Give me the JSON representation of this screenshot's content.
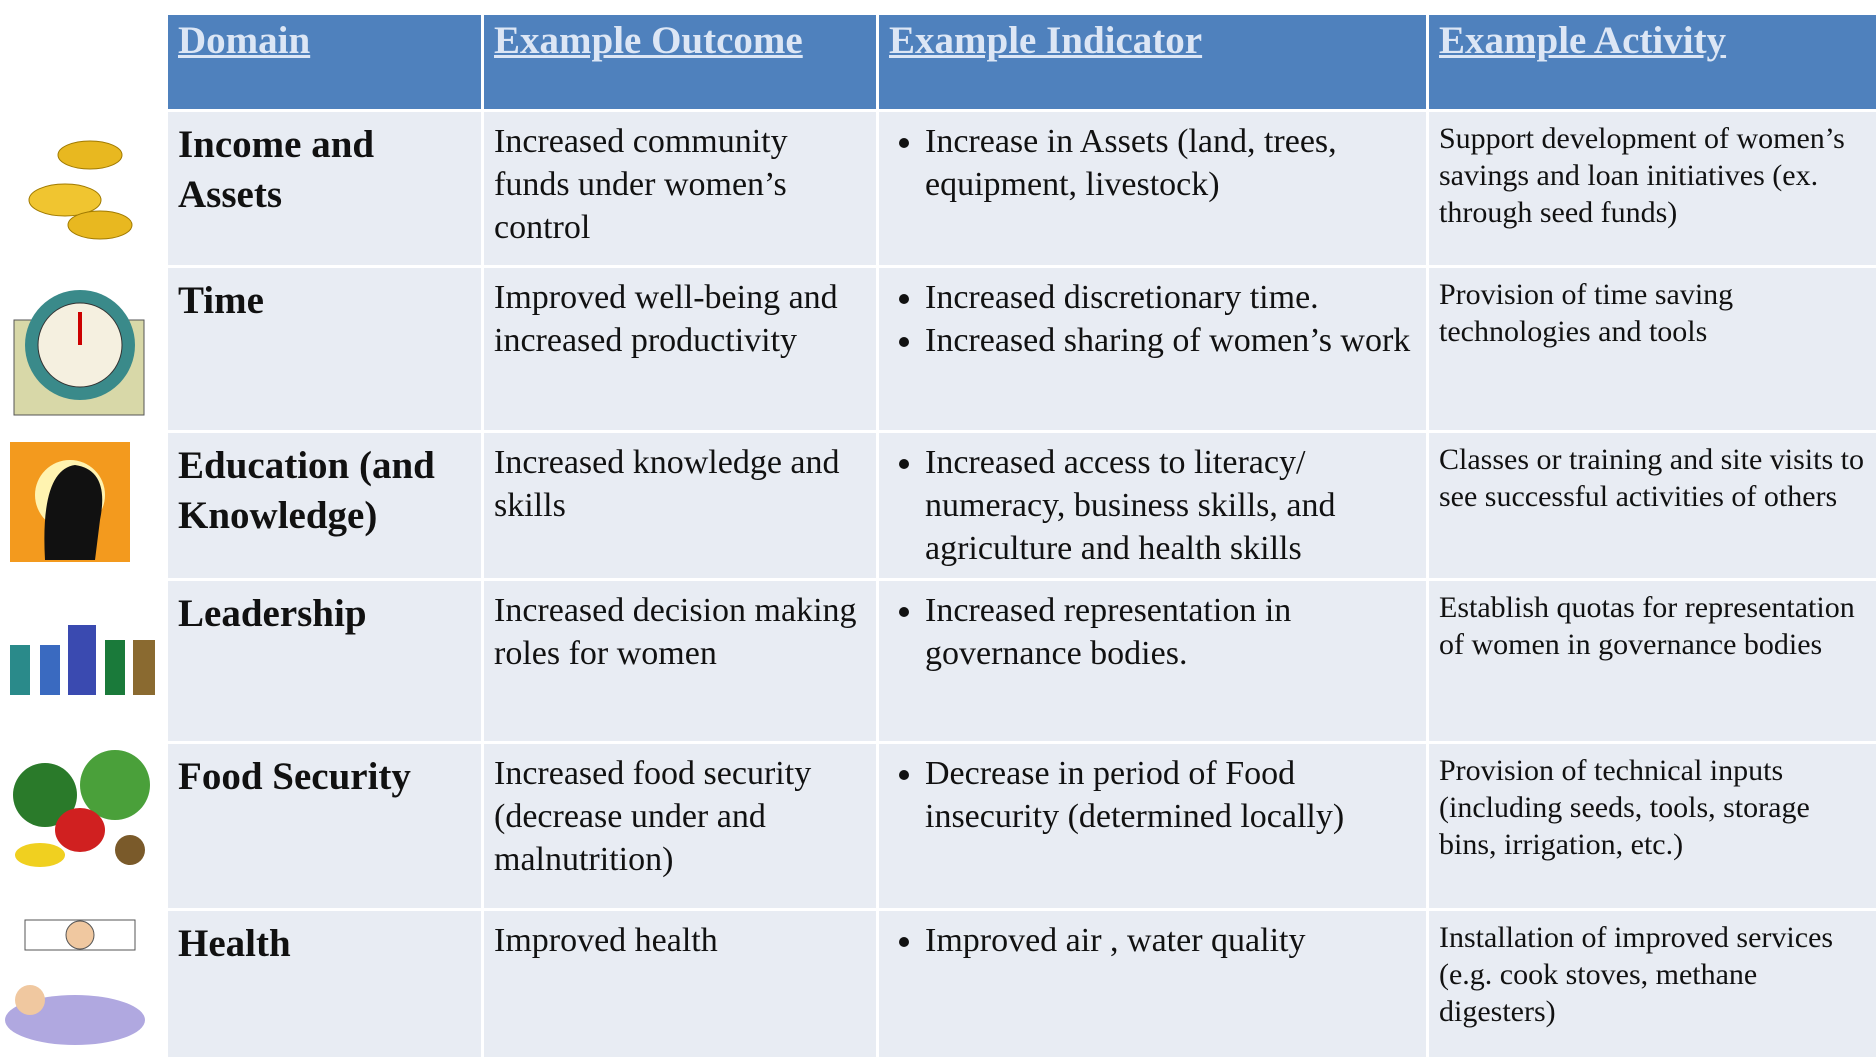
{
  "table": {
    "header": [
      "Domain",
      "Example Outcome",
      "Example Indicator",
      "Example Activity"
    ],
    "rows": [
      {
        "domain": "Income and Assets",
        "outcome": "Increased  community funds under women’s control",
        "indicators": [
          "Increase in Assets (land, trees, equipment, livestock)"
        ],
        "activity": "Support development of women’s savings and loan initiatives (ex. through seed funds)"
      },
      {
        "domain": "Time",
        "outcome": "Improved well-being and increased productivity",
        "indicators": [
          "Increased discretionary time.",
          "Increased sharing of women’s work"
        ],
        "activity": "Provision of time saving technologies and tools"
      },
      {
        "domain": "Education (and Knowledge)",
        "outcome": "Increased knowledge and skills",
        "indicators": [
          "Increased access to literacy/ numeracy, business skills, and agriculture and health skills"
        ],
        "activity": "Classes or training and site visits to see successful activities of others"
      },
      {
        "domain": "Leadership",
        "outcome": "Increased decision making roles for women",
        "indicators": [
          "Increased representation in governance bodies."
        ],
        "activity": "Establish quotas for representation of women in governance bodies"
      },
      {
        "domain": "Food Security",
        "outcome": "Increased food security (decrease under and malnutrition)",
        "indicators": [
          "Decrease in period of Food insecurity (determined locally)"
        ],
        "activity": "Provision of technical inputs (including seeds, tools, storage bins, irrigation, etc.)"
      },
      {
        "domain": "Health",
        "outcome": "Improved  health",
        "indicators": [
          "Improved air , water quality"
        ],
        "activity": "Installation of improved services (e.g. cook stoves, methane digesters)"
      }
    ]
  }
}
